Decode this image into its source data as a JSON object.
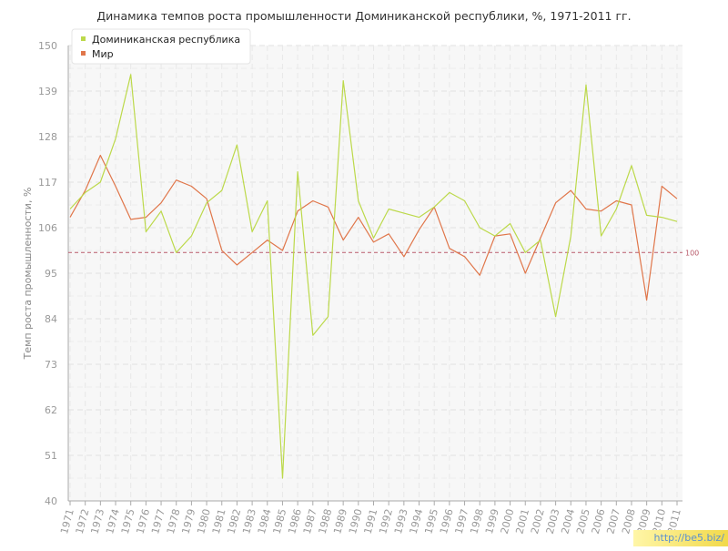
{
  "chart_data": {
    "type": "line",
    "title": "Динамика темпов роста промышленности Доминиканской республики, %, 1971-2011 гг.",
    "ylabel": "Темп роста промышленности, %",
    "xlabel": "",
    "ylim": [
      40,
      150
    ],
    "yticks": [
      "40",
      "51",
      "62",
      "73",
      "84",
      "95",
      "106",
      "117",
      "128",
      "139",
      "150"
    ],
    "x": [
      "1971",
      "1972",
      "1973",
      "1974",
      "1975",
      "1976",
      "1977",
      "1978",
      "1979",
      "1980",
      "1981",
      "1982",
      "1983",
      "1984",
      "1985",
      "1986",
      "1987",
      "1988",
      "1989",
      "1990",
      "1991",
      "1992",
      "1993",
      "1994",
      "1995",
      "1996",
      "1997",
      "1998",
      "1999",
      "2000",
      "2001",
      "2002",
      "2003",
      "2004",
      "2005",
      "2006",
      "2007",
      "2008",
      "2009",
      "2010",
      "2011"
    ],
    "series": [
      {
        "name": "Доминиканская республика",
        "color": "#bcd94a",
        "values": [
          110.5,
          114.5,
          117,
          127.5,
          143,
          105,
          110,
          100,
          104,
          112,
          115,
          126,
          105,
          112.5,
          45.5,
          119.5,
          80,
          84.5,
          141.5,
          112.5,
          103.5,
          110.5,
          109.5,
          108.5,
          111,
          114.5,
          112.5,
          106,
          104,
          107,
          100,
          103,
          84.5,
          104,
          140.5,
          104,
          110.5,
          121,
          109,
          108.5,
          107.5
        ]
      },
      {
        "name": "Мир",
        "color": "#e0764a",
        "values": [
          108.5,
          115,
          123.5,
          116,
          108,
          108.5,
          112,
          117.5,
          116,
          113,
          100.5,
          97,
          100,
          103,
          100.5,
          110,
          112.5,
          111,
          103,
          108.5,
          102.5,
          104.5,
          99,
          105.5,
          111,
          101,
          99,
          94.5,
          104,
          104.5,
          95,
          103.5,
          112,
          115,
          110.5,
          110,
          112.5,
          111.5,
          88.5,
          116,
          113
        ]
      }
    ],
    "reference_line": {
      "value": 100,
      "label": "100",
      "color": "#b85a6a"
    },
    "legend_position": "top-left",
    "grid": true
  },
  "watermark": "http://be5.biz/"
}
